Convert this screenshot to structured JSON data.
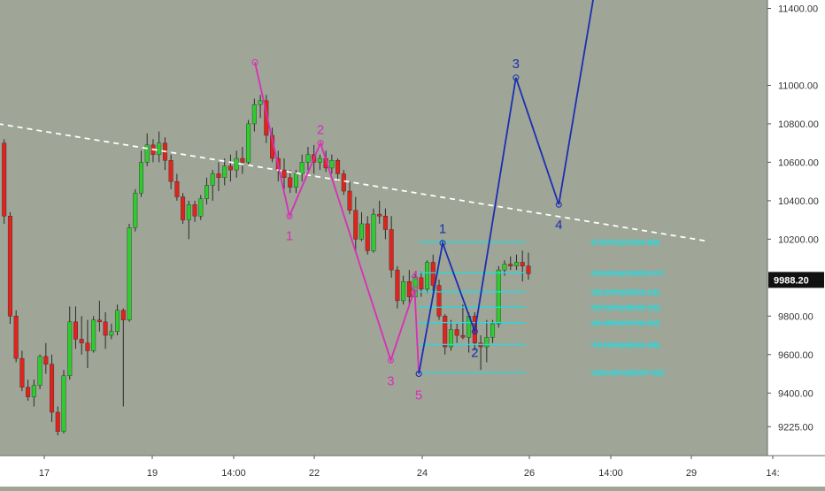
{
  "chart_data": {
    "type": "candlestick",
    "title": "",
    "xlabel": "",
    "ylabel": "",
    "ylim": [
      9110,
      11480
    ],
    "x_tick_labels": [
      "17",
      "19",
      "14:00",
      "22",
      "24",
      "26",
      "14:00",
      "29",
      "14:"
    ],
    "y_tick_labels": [
      "11400.00",
      "11000.00",
      "10800.00",
      "10600.00",
      "10400.00",
      "10200.00",
      "9800.00",
      "9600.00",
      "9400.00",
      "9225.00"
    ],
    "y_tick_values": [
      11400,
      11000,
      10800,
      10600,
      10400,
      10200,
      9800,
      9600,
      9400,
      9225
    ],
    "last_price": {
      "value": 9988.2,
      "label": "9988.20"
    },
    "colors": {
      "background": "#9fa597",
      "up": "#2ecc2e",
      "down": "#e0231d",
      "wick": "#2b2b2b",
      "fib": "#19e0e6",
      "pink_wave": "#d92fb8",
      "blue_wave": "#1a2fb0",
      "trendline": "#ffffff"
    },
    "candles": [
      [
        0,
        10700,
        10720,
        10280,
        10320
      ],
      [
        1,
        10320,
        10340,
        9760,
        9800
      ],
      [
        2,
        9800,
        9830,
        9560,
        9580
      ],
      [
        3,
        9580,
        9620,
        9410,
        9430
      ],
      [
        4,
        9430,
        9470,
        9360,
        9380
      ],
      [
        5,
        9380,
        9470,
        9330,
        9440
      ],
      [
        6,
        9440,
        9600,
        9420,
        9590
      ],
      [
        7,
        9590,
        9660,
        9500,
        9550
      ],
      [
        8,
        9550,
        9600,
        9250,
        9300
      ],
      [
        9,
        9300,
        9330,
        9180,
        9200
      ],
      [
        10,
        9200,
        9520,
        9190,
        9490
      ],
      [
        11,
        9490,
        9850,
        9470,
        9770
      ],
      [
        12,
        9770,
        9850,
        9630,
        9680
      ],
      [
        13,
        9680,
        9800,
        9600,
        9660
      ],
      [
        14,
        9660,
        9780,
        9530,
        9620
      ],
      [
        15,
        9620,
        9800,
        9610,
        9780
      ],
      [
        16,
        9780,
        9880,
        9720,
        9770
      ],
      [
        17,
        9770,
        9820,
        9630,
        9700
      ],
      [
        18,
        9700,
        9760,
        9680,
        9720
      ],
      [
        19,
        9720,
        9860,
        9700,
        9830
      ],
      [
        20,
        9830,
        9840,
        9330,
        9780
      ],
      [
        21,
        9780,
        10280,
        9770,
        10260
      ],
      [
        22,
        10260,
        10460,
        10240,
        10440
      ],
      [
        23,
        10440,
        10660,
        10420,
        10600
      ],
      [
        24,
        10600,
        10750,
        10580,
        10690
      ],
      [
        25,
        10690,
        10720,
        10600,
        10640
      ],
      [
        26,
        10640,
        10760,
        10600,
        10700
      ],
      [
        27,
        10700,
        10730,
        10560,
        10610
      ],
      [
        28,
        10610,
        10640,
        10460,
        10500
      ],
      [
        29,
        10500,
        10540,
        10400,
        10420
      ],
      [
        30,
        10420,
        10440,
        10280,
        10300
      ],
      [
        31,
        10300,
        10400,
        10200,
        10380
      ],
      [
        32,
        10380,
        10400,
        10290,
        10320
      ],
      [
        33,
        10320,
        10430,
        10300,
        10410
      ],
      [
        34,
        10410,
        10520,
        10380,
        10480
      ],
      [
        35,
        10480,
        10560,
        10400,
        10540
      ],
      [
        36,
        10540,
        10600,
        10450,
        10520
      ],
      [
        37,
        10520,
        10620,
        10480,
        10580
      ],
      [
        38,
        10580,
        10640,
        10500,
        10560
      ],
      [
        39,
        10560,
        10660,
        10520,
        10620
      ],
      [
        40,
        10620,
        10680,
        10540,
        10600
      ],
      [
        41,
        10600,
        10820,
        10580,
        10800
      ],
      [
        42,
        10800,
        10930,
        10760,
        10900
      ],
      [
        43,
        10900,
        10950,
        10830,
        10920
      ],
      [
        44,
        10920,
        10950,
        10700,
        10740
      ],
      [
        45,
        10740,
        10780,
        10600,
        10620
      ],
      [
        46,
        10620,
        10660,
        10500,
        10560
      ],
      [
        47,
        10560,
        10620,
        10460,
        10520
      ],
      [
        48,
        10520,
        10560,
        10440,
        10470
      ],
      [
        49,
        10470,
        10560,
        10440,
        10540
      ],
      [
        50,
        10540,
        10640,
        10500,
        10600
      ],
      [
        51,
        10600,
        10680,
        10560,
        10640
      ],
      [
        52,
        10640,
        10690,
        10540,
        10600
      ],
      [
        53,
        10600,
        10640,
        10560,
        10620
      ],
      [
        54,
        10620,
        10660,
        10550,
        10570
      ],
      [
        55,
        10570,
        10640,
        10540,
        10610
      ],
      [
        56,
        10610,
        10620,
        10500,
        10540
      ],
      [
        57,
        10540,
        10560,
        10430,
        10450
      ],
      [
        58,
        10450,
        10500,
        10330,
        10350
      ],
      [
        59,
        10350,
        10420,
        10130,
        10200
      ],
      [
        60,
        10200,
        10340,
        10190,
        10280
      ],
      [
        61,
        10280,
        10320,
        10120,
        10140
      ],
      [
        62,
        10140,
        10360,
        10130,
        10330
      ],
      [
        63,
        10330,
        10400,
        10280,
        10320
      ],
      [
        64,
        10320,
        10360,
        10200,
        10250
      ],
      [
        65,
        10250,
        10320,
        10000,
        10040
      ],
      [
        66,
        10040,
        10060,
        9840,
        9880
      ],
      [
        67,
        9880,
        10010,
        9860,
        9980
      ],
      [
        68,
        9980,
        10040,
        9860,
        9900
      ],
      [
        69,
        9900,
        10020,
        9880,
        10000
      ],
      [
        70,
        10000,
        10030,
        9900,
        9940
      ],
      [
        71,
        9940,
        10090,
        9920,
        10080
      ],
      [
        72,
        10080,
        10120,
        9900,
        9960
      ],
      [
        73,
        9960,
        9990,
        9780,
        9800
      ],
      [
        74,
        9800,
        9810,
        9600,
        9640
      ],
      [
        75,
        9640,
        9780,
        9620,
        9730
      ],
      [
        76,
        9730,
        9760,
        9660,
        9700
      ],
      [
        77,
        9700,
        9860,
        9680,
        9690
      ],
      [
        78,
        9690,
        9820,
        9610,
        9800
      ],
      [
        79,
        9800,
        9820,
        9620,
        9660
      ],
      [
        80,
        9660,
        9700,
        9520,
        9640
      ],
      [
        81,
        9640,
        9780,
        9560,
        9690
      ],
      [
        82,
        9690,
        9780,
        9660,
        9760
      ],
      [
        83,
        9760,
        10060,
        9740,
        10040
      ],
      [
        84,
        10040,
        10090,
        10010,
        10070
      ],
      [
        85,
        10070,
        10110,
        10040,
        10060
      ],
      [
        86,
        10060,
        10120,
        10040,
        10080
      ],
      [
        87,
        10080,
        10140,
        9980,
        10060
      ],
      [
        88,
        10060,
        10130,
        9990,
        10020
      ]
    ],
    "trendline": {
      "label": "",
      "style": "dashed",
      "points": [
        [
          -1,
          10800
        ],
        [
          118,
          10190
        ]
      ]
    },
    "pink_wave": {
      "points": [
        [
          42.1,
          11120
        ],
        [
          47.9,
          10320
        ],
        [
          53.1,
          10700
        ],
        [
          64.9,
          9570
        ],
        [
          68.9,
          9940
        ],
        [
          69.6,
          9500
        ]
      ],
      "labels": [
        {
          "text": "1",
          "at": 1
        },
        {
          "text": "2",
          "at": 2
        },
        {
          "text": "3",
          "at": 3
        },
        {
          "text": "4",
          "at": 4
        },
        {
          "text": "5",
          "at": 5
        }
      ]
    },
    "blue_wave": {
      "points": [
        [
          69.6,
          9500
        ],
        [
          73.6,
          10180
        ],
        [
          79,
          9720
        ],
        [
          85.9,
          11040
        ],
        [
          93.1,
          10380
        ],
        [
          99,
          11470
        ]
      ],
      "labels": [
        {
          "text": "1",
          "at": 1
        },
        {
          "text": "2",
          "at": 2
        },
        {
          "text": "3",
          "at": 3
        },
        {
          "text": "4",
          "at": 4
        }
      ]
    },
    "fibonacci_levels": [
      {
        "ratio": "0.00%",
        "price": 10184.99,
        "label": "0.00%(10184.99)"
      },
      {
        "ratio": "23.60%",
        "price": 10025.07,
        "label": "23.60%(10025.07)"
      },
      {
        "ratio": "38.20%",
        "price": 9926.14,
        "label": "38.20%(9926.14)"
      },
      {
        "ratio": "50.00%",
        "price": 9846.19,
        "label": "50.00%(9846.19)"
      },
      {
        "ratio": "61.80%",
        "price": 9766.23,
        "label": "61.80%(9766.23)"
      },
      {
        "ratio": "78.60%",
        "price": 9652.39,
        "label": "78.60%(9652.39)"
      },
      {
        "ratio": "100.00%",
        "price": 9507.38,
        "label": "100.00%(9507.38)"
      }
    ]
  }
}
